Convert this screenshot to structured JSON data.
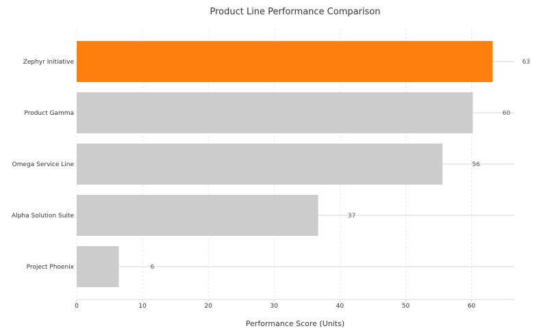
{
  "chart_data": {
    "type": "bar",
    "orientation": "horizontal",
    "title": "Product Line Performance Comparison",
    "xlabel": "Performance Score (Units)",
    "ylabel": "",
    "categories": [
      "Zephyr Initiative",
      "Product Gamma",
      "Omega Service Line",
      "Alpha Solution Suite",
      "Project Phoenix"
    ],
    "values": [
      63.2,
      60.2,
      55.6,
      36.7,
      6.4
    ],
    "value_labels": [
      "63",
      "60",
      "56",
      "37",
      "6"
    ],
    "xlim": [
      0,
      66.5
    ],
    "xticks": [
      0,
      10,
      20,
      30,
      40,
      50,
      60
    ],
    "xtick_labels": [
      "0",
      "10",
      "20",
      "30",
      "40",
      "50",
      "60"
    ],
    "grid": true,
    "highlight_index": 0,
    "colors": {
      "highlight": "#ff7f0e",
      "default": "#cccccc",
      "grid": "#e6e6e6",
      "leader": "#c8c8c8",
      "axis": "#cccccc"
    }
  }
}
